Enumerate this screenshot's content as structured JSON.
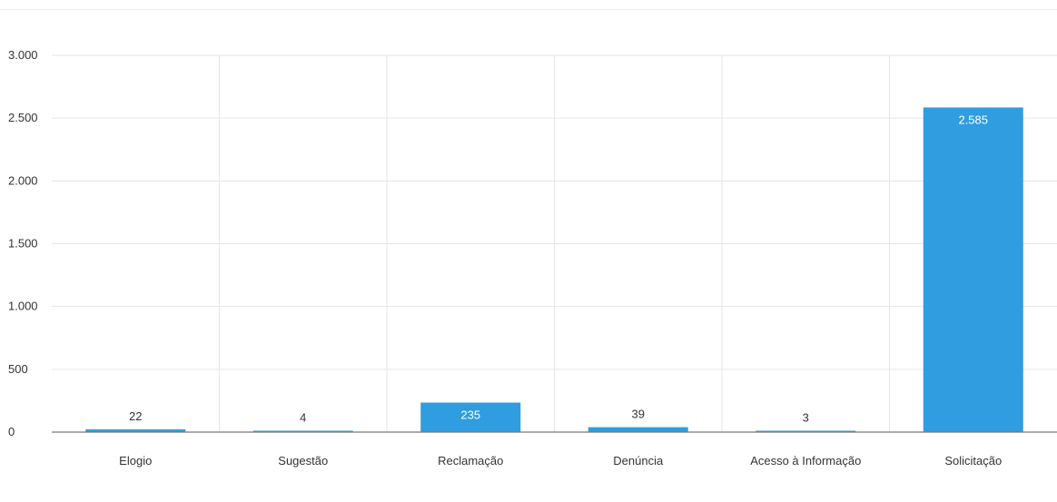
{
  "chart_data": {
    "type": "bar",
    "categories": [
      "Elogio",
      "Sugestão",
      "Reclamação",
      "Denúncia",
      "Acesso à Informação",
      "Solicitação"
    ],
    "values": [
      22,
      4,
      235,
      39,
      3,
      2585
    ],
    "value_labels": [
      "22",
      "4",
      "235",
      "39",
      "3",
      "2.585"
    ],
    "ylim": [
      0,
      3000
    ],
    "y_ticks": [
      0,
      500,
      1000,
      1500,
      2000,
      2500,
      3000
    ],
    "y_tick_labels": [
      "0",
      "500",
      "1.000",
      "1.500",
      "2.000",
      "2.500",
      "3.000"
    ],
    "title": "",
    "xlabel": "",
    "ylabel": "",
    "grid": true,
    "bar_color": "#2f9ddf",
    "grid_color": "#e6e6e6",
    "axis_color": "#7a7a7a"
  }
}
